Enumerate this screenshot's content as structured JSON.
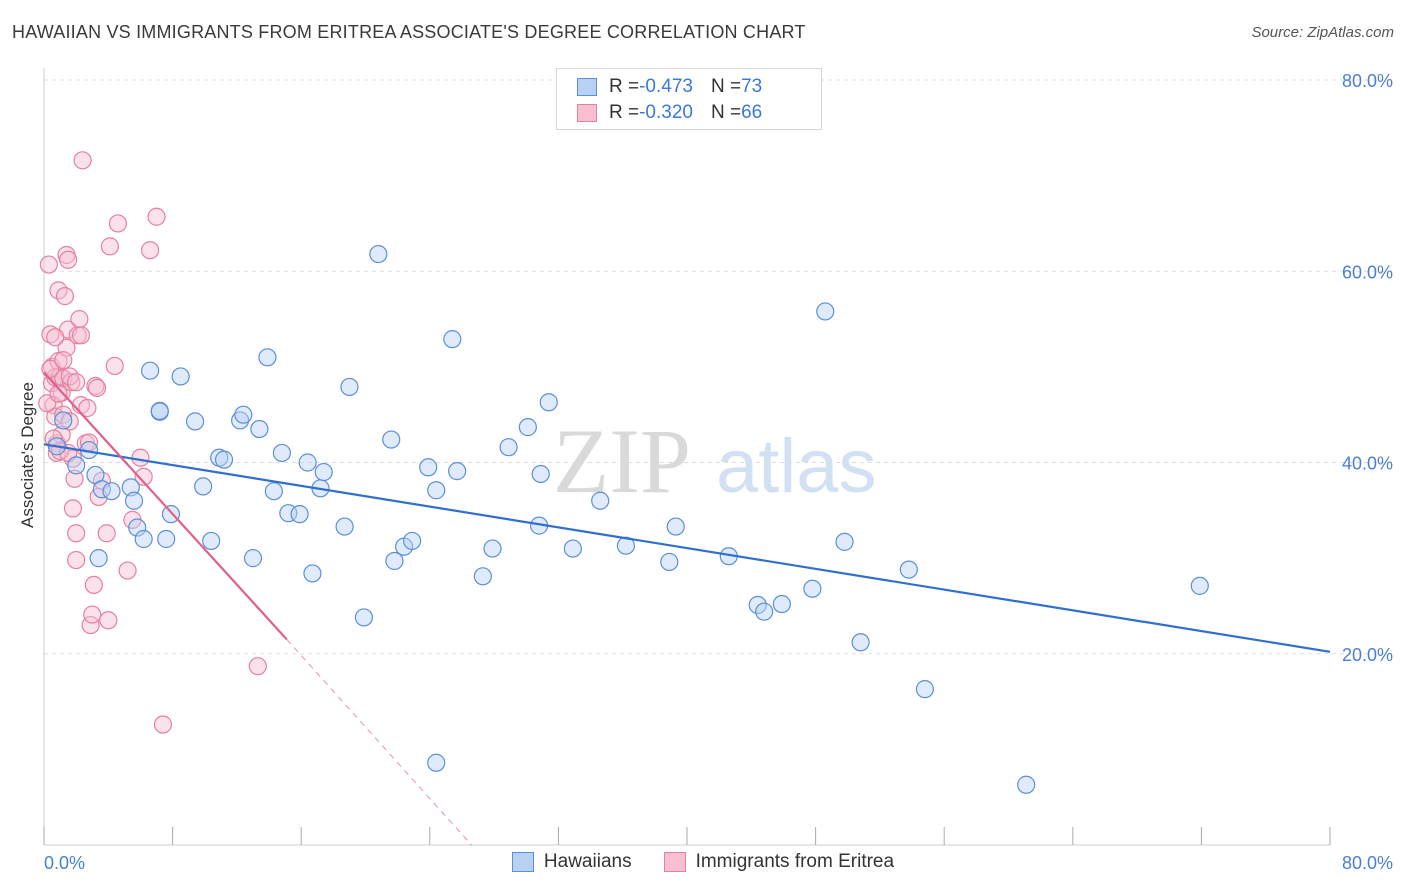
{
  "title": "HAWAIIAN VS IMMIGRANTS FROM ERITREA ASSOCIATE'S DEGREE CORRELATION CHART",
  "source": "Source: ZipAtlas.com",
  "watermark": {
    "zip": "ZIP",
    "atlas": "atlas"
  },
  "legend_top": {
    "rows": [
      {
        "r_label": "R = ",
        "r_value": "-0.473",
        "n_label": "N = ",
        "n_value": "73"
      },
      {
        "r_label": "R = ",
        "r_value": "-0.320",
        "n_label": "N = ",
        "n_value": "66"
      }
    ]
  },
  "legend_bottom": [
    "Hawaiians",
    "Immigrants from Eritrea"
  ],
  "colors": {
    "blue_fill": "#b8d1f3",
    "blue_stroke": "#5b8fd8",
    "blue_line": "#2f6fce",
    "pink_fill": "#f7bfd0",
    "pink_stroke": "#e77fa0",
    "pink_line": "#e0608c",
    "grid": "#dddddd",
    "tick_text": "#4a7fd0"
  },
  "chart_data": {
    "type": "scatter",
    "title": "HAWAIIAN VS IMMIGRANTS FROM ERITREA ASSOCIATE'S DEGREE CORRELATION CHART",
    "xlabel": "",
    "ylabel": "Associate's Degree",
    "xlim": [
      0,
      80
    ],
    "ylim": [
      0,
      80
    ],
    "x_tick_labels": [
      "0.0%",
      "80.0%"
    ],
    "y_tick_labels": [
      "20.0%",
      "40.0%",
      "60.0%",
      "80.0%"
    ],
    "y_ticks": [
      20,
      40,
      60,
      80
    ],
    "grid": true,
    "legend_position": "top-center",
    "series": [
      {
        "name": "Hawaiians",
        "color": "#5b8fd8",
        "points": [
          [
            0.8,
            41.7
          ],
          [
            1.2,
            44.4
          ],
          [
            2.0,
            39.7
          ],
          [
            2.8,
            41.3
          ],
          [
            3.2,
            38.7
          ],
          [
            3.4,
            30.0
          ],
          [
            3.6,
            37.2
          ],
          [
            4.2,
            37.0
          ],
          [
            5.4,
            37.4
          ],
          [
            5.6,
            36.0
          ],
          [
            5.8,
            33.2
          ],
          [
            6.2,
            32.0
          ],
          [
            6.6,
            49.6
          ],
          [
            7.2,
            45.3
          ],
          [
            7.6,
            32.0
          ],
          [
            7.9,
            34.6
          ],
          [
            8.5,
            49.0
          ],
          [
            9.4,
            44.3
          ],
          [
            9.9,
            37.5
          ],
          [
            10.4,
            31.8
          ],
          [
            10.9,
            40.5
          ],
          [
            11.2,
            40.3
          ],
          [
            12.2,
            44.4
          ],
          [
            12.4,
            45.0
          ],
          [
            13.0,
            30.0
          ],
          [
            13.4,
            43.5
          ],
          [
            13.9,
            51.0
          ],
          [
            14.3,
            37.0
          ],
          [
            14.8,
            41.0
          ],
          [
            15.2,
            34.7
          ],
          [
            15.9,
            34.6
          ],
          [
            16.4,
            40.0
          ],
          [
            16.7,
            28.4
          ],
          [
            17.2,
            37.3
          ],
          [
            17.4,
            39.0
          ],
          [
            18.7,
            33.3
          ],
          [
            19.0,
            47.9
          ],
          [
            19.9,
            23.8
          ],
          [
            20.8,
            61.8
          ],
          [
            21.6,
            42.4
          ],
          [
            21.8,
            29.7
          ],
          [
            22.4,
            31.2
          ],
          [
            22.9,
            31.8
          ],
          [
            23.9,
            39.5
          ],
          [
            24.4,
            37.1
          ],
          [
            25.4,
            52.9
          ],
          [
            25.7,
            39.1
          ],
          [
            27.3,
            28.1
          ],
          [
            27.9,
            31.0
          ],
          [
            28.9,
            41.6
          ],
          [
            30.1,
            43.7
          ],
          [
            30.8,
            33.4
          ],
          [
            30.9,
            38.8
          ],
          [
            31.4,
            46.3
          ],
          [
            32.9,
            31.0
          ],
          [
            34.6,
            36.0
          ],
          [
            36.2,
            31.3
          ],
          [
            38.9,
            29.6
          ],
          [
            39.3,
            33.3
          ],
          [
            42.6,
            30.2
          ],
          [
            44.4,
            25.1
          ],
          [
            44.8,
            24.4
          ],
          [
            45.9,
            25.2
          ],
          [
            47.8,
            26.8
          ],
          [
            48.6,
            55.8
          ],
          [
            49.8,
            31.7
          ],
          [
            50.8,
            21.2
          ],
          [
            53.8,
            28.8
          ],
          [
            54.8,
            16.3
          ],
          [
            61.1,
            6.3
          ],
          [
            71.9,
            27.1
          ],
          [
            24.4,
            8.6
          ],
          [
            7.2,
            45.4
          ]
        ]
      },
      {
        "name": "Immigrants from Eritrea",
        "color": "#e77fa0",
        "points": [
          [
            0.3,
            60.7
          ],
          [
            0.4,
            53.4
          ],
          [
            0.5,
            50.0
          ],
          [
            0.5,
            48.3
          ],
          [
            0.6,
            46.0
          ],
          [
            0.7,
            44.8
          ],
          [
            0.7,
            48.9
          ],
          [
            0.8,
            42.0
          ],
          [
            0.8,
            41.0
          ],
          [
            0.9,
            58.0
          ],
          [
            0.9,
            50.6
          ],
          [
            1.0,
            49.0
          ],
          [
            1.1,
            42.9
          ],
          [
            1.1,
            47.3
          ],
          [
            1.2,
            45.0
          ],
          [
            1.2,
            48.8
          ],
          [
            1.3,
            57.4
          ],
          [
            1.4,
            61.7
          ],
          [
            1.4,
            52.0
          ],
          [
            1.5,
            61.2
          ],
          [
            1.5,
            53.9
          ],
          [
            1.6,
            44.3
          ],
          [
            1.7,
            48.4
          ],
          [
            1.8,
            40.4
          ],
          [
            1.8,
            35.2
          ],
          [
            1.9,
            38.3
          ],
          [
            2.0,
            32.6
          ],
          [
            2.0,
            29.8
          ],
          [
            2.1,
            53.3
          ],
          [
            2.2,
            55.0
          ],
          [
            2.3,
            53.3
          ],
          [
            2.3,
            46.0
          ],
          [
            2.4,
            71.6
          ],
          [
            2.6,
            42.0
          ],
          [
            2.7,
            45.7
          ],
          [
            2.9,
            23.0
          ],
          [
            3.0,
            24.1
          ],
          [
            3.1,
            27.2
          ],
          [
            3.2,
            48.0
          ],
          [
            3.4,
            36.4
          ],
          [
            3.6,
            38.1
          ],
          [
            3.9,
            32.6
          ],
          [
            4.0,
            23.5
          ],
          [
            4.1,
            62.6
          ],
          [
            4.4,
            50.1
          ],
          [
            4.6,
            65.0
          ],
          [
            5.2,
            28.7
          ],
          [
            5.5,
            34.0
          ],
          [
            6.0,
            40.5
          ],
          [
            6.2,
            38.5
          ],
          [
            6.6,
            62.2
          ],
          [
            7.0,
            65.7
          ],
          [
            7.4,
            12.6
          ],
          [
            13.3,
            18.7
          ],
          [
            0.2,
            46.2
          ],
          [
            0.6,
            42.5
          ],
          [
            1.0,
            41.2
          ],
          [
            0.4,
            49.8
          ],
          [
            0.9,
            47.2
          ],
          [
            1.6,
            49.0
          ],
          [
            2.8,
            42.1
          ],
          [
            3.3,
            47.8
          ],
          [
            1.2,
            50.7
          ],
          [
            0.7,
            53.1
          ],
          [
            2.0,
            48.4
          ],
          [
            1.5,
            41.0
          ]
        ]
      }
    ],
    "trendlines": [
      {
        "series": "Hawaiians",
        "x": [
          0,
          80
        ],
        "y": [
          41.9,
          20.2
        ],
        "style": "solid"
      },
      {
        "series": "Immigrants from Eritrea",
        "x": [
          0,
          15.1
        ],
        "y": [
          49.4,
          21.5
        ],
        "style": "solid"
      },
      {
        "series": "Immigrants from Eritrea",
        "x": [
          15.1,
          26.6
        ],
        "y": [
          21.5,
          0
        ],
        "style": "dashed"
      }
    ]
  }
}
